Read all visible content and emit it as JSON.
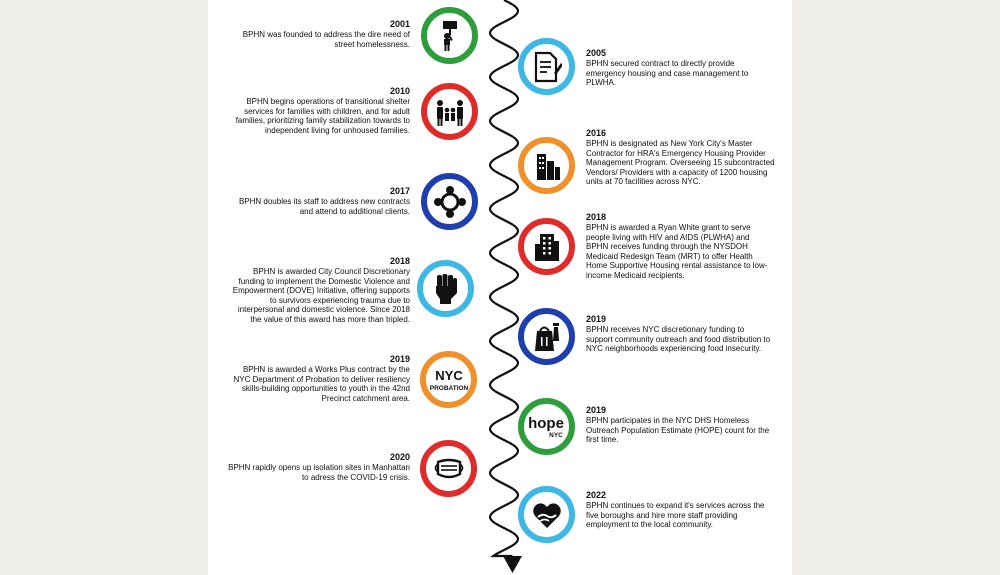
{
  "colors": {
    "green": "#2e9e3c",
    "cyan": "#3db7e4",
    "red": "#e02b2b",
    "orange": "#f0902a",
    "blue": "#1f3fae",
    "line": "#111111",
    "background": "#f1efe9",
    "panel": "#ffffff"
  },
  "events": [
    {
      "side": "left",
      "year": "2001",
      "text": "BPHN was founded to address the dire need of street homelessness.",
      "icon": "protest-sign-person-icon",
      "color": "green"
    },
    {
      "side": "right",
      "year": "2005",
      "text": "BPHN secured contract to directly provide emergency housing and case management to PLWHA.",
      "icon": "contract-document-icon",
      "color": "cyan"
    },
    {
      "side": "left",
      "year": "2010",
      "text": "BPHN begins operations of transitional shelter services for families with children, and for adult families, prioritizing family stabilization towards to independent living for unhoused families.",
      "icon": "family-icon",
      "color": "red"
    },
    {
      "side": "right",
      "year": "2016",
      "text": "BPHN is designated as New York City's Master Contractor for HRA's Emergency Housing Provider Management Program. Overseeing 15 subcontracted Vendors/ Providers with a capacity of 1200 housing units at 70 facilities across NYC.",
      "icon": "city-buildings-icon",
      "color": "orange"
    },
    {
      "side": "left",
      "year": "2017",
      "text": "BPHN doubles its staff to address new contracts and attend to additional clients.",
      "icon": "team-circle-icon",
      "color": "blue"
    },
    {
      "side": "right",
      "year": "2018",
      "text": "BPHN is awarded a Ryan White grant to serve people living with HIV and AIDS (PLWHA) and BPHN receives funding through the NYSDOH Medicaid Redesign Team (MRT) to offer Health Home Supportive Housing rental assistance to low-income Medicaid recipients.",
      "icon": "apartment-building-icon",
      "color": "red"
    },
    {
      "side": "left",
      "year": "2018",
      "text": "BPHN is awarded City Council Discretionary funding to implement the Domestic Violence and Empowerment (DOVE) Initiative, offering supports to survivors experiencing trauma due to interpersonal and domestic violence. Since 2018 the value of this award has more than tripled.",
      "icon": "raised-fist-icon",
      "color": "cyan"
    },
    {
      "side": "right",
      "year": "2019",
      "text": "BPHN receives NYC discretionary funding to support community outreach and food distribution to NYC neighborhoods experiencing food insecurity.",
      "icon": "food-bag-icon",
      "color": "blue"
    },
    {
      "side": "left",
      "year": "2019",
      "text": "BPHN is awarded a Works Plus contract by the NYC Department of Probation to deliver resiliency skills-building opportunities to youth in the 42nd Precinct catchment area.",
      "icon": "nyc-probation-logo-icon",
      "color": "orange",
      "logo_text_1": "NYC",
      "logo_text_2": "PROBATION"
    },
    {
      "side": "right",
      "year": "2019",
      "text": "BPHN participates in the NYC DHS Homeless Outreach Population Estimate (HOPE) count for the first time.",
      "icon": "hope-nyc-logo-icon",
      "color": "green",
      "logo_text_1": "hope",
      "logo_text_2": "NYC"
    },
    {
      "side": "left",
      "year": "2020",
      "text": "BPHN rapidly opens up isolation sites in Manhattan to adress the COVID-19 crisis.",
      "icon": "face-mask-icon",
      "color": "red"
    },
    {
      "side": "right",
      "year": "2022",
      "text": "BPHN continues to expand it's services across the five boroughs and hire more staff providing employment to the local community.",
      "icon": "heart-hands-icon",
      "color": "cyan"
    }
  ]
}
